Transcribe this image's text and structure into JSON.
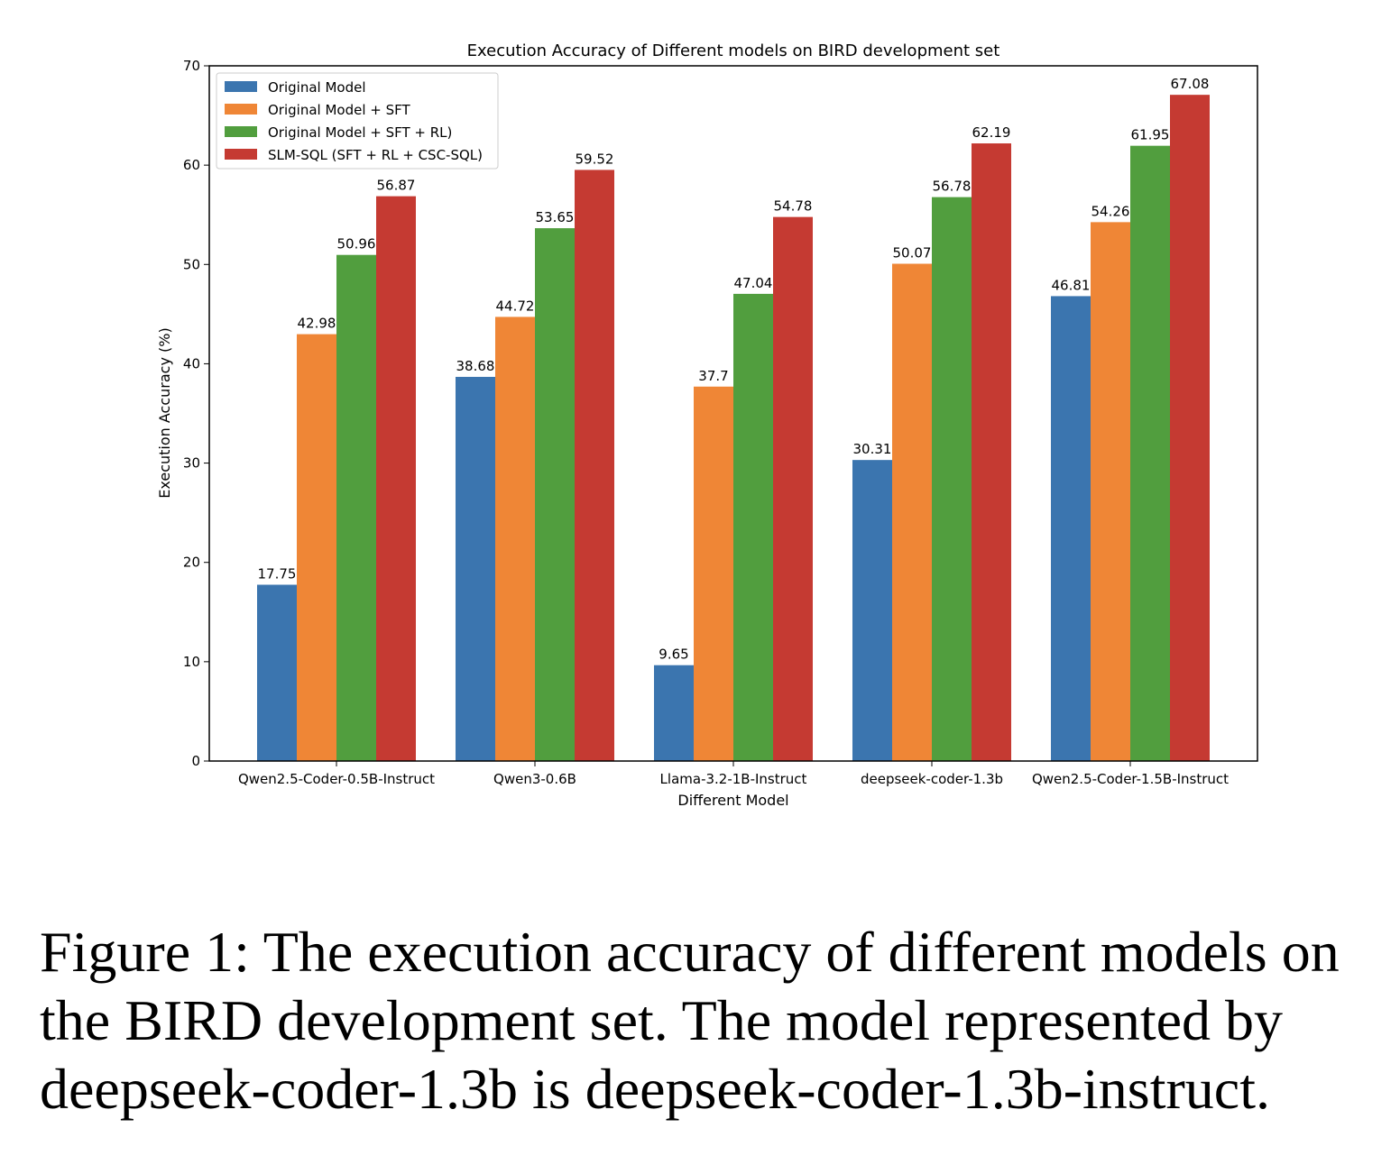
{
  "caption": "Figure 1: The execution accuracy of different models on the BIRD development set. The model represented by deepseek-coder-1.3b is deepseek-coder-1.3b-instruct.",
  "chart_data": {
    "type": "bar",
    "title": "Execution Accuracy of Different models on BIRD development set",
    "xlabel": "Different Model",
    "ylabel": "Execution Accuracy (%)",
    "ylim": [
      0,
      70
    ],
    "yticks": [
      0,
      10,
      20,
      30,
      40,
      50,
      60,
      70
    ],
    "grid": false,
    "legend_position": "top-left",
    "categories": [
      "Qwen2.5-Coder-0.5B-Instruct",
      "Qwen3-0.6B",
      "Llama-3.2-1B-Instruct",
      "deepseek-coder-1.3b",
      "Qwen2.5-Coder-1.5B-Instruct"
    ],
    "series": [
      {
        "name": "Original Model",
        "color": "#3b75af",
        "values": [
          17.75,
          38.68,
          9.65,
          30.31,
          46.81
        ]
      },
      {
        "name": "Original Model + SFT",
        "color": "#ef8636",
        "values": [
          42.98,
          44.72,
          37.7,
          50.07,
          54.26
        ]
      },
      {
        "name": "Original Model + SFT + RL)",
        "color": "#519e3e",
        "values": [
          50.96,
          53.65,
          47.04,
          56.78,
          61.95
        ]
      },
      {
        "name": "SLM-SQL (SFT + RL + CSC-SQL)",
        "color": "#c53a32",
        "values": [
          56.87,
          59.52,
          54.78,
          62.19,
          67.08
        ]
      }
    ]
  }
}
